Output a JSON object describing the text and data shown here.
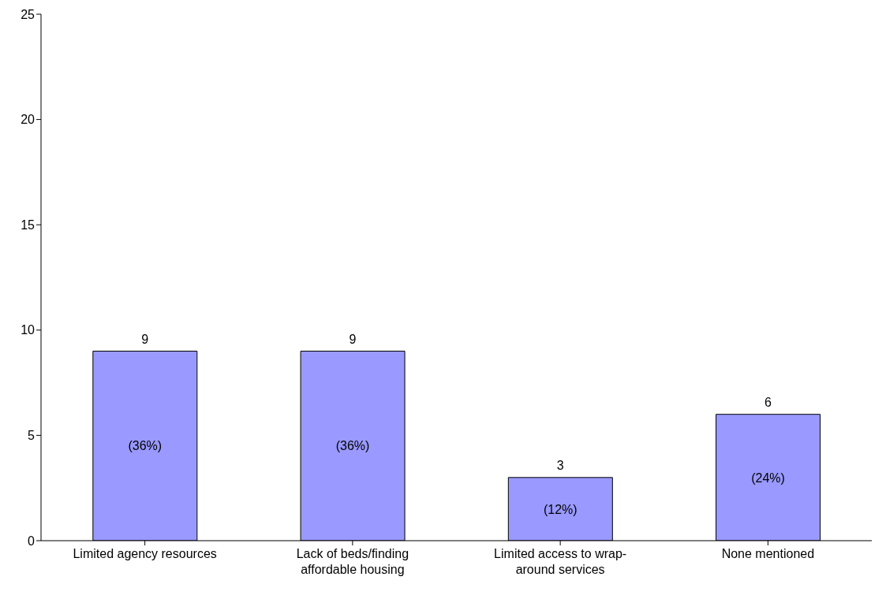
{
  "chart_data": {
    "type": "bar",
    "categories": [
      "Limited agency resources",
      "Lack of beds/finding affordable housing",
      "Limited access to wrap-around services",
      "None mentioned"
    ],
    "values": [
      9,
      9,
      3,
      6
    ],
    "color": "#9999ff",
    "ylim": [
      0,
      25
    ],
    "yticks": [
      0,
      5,
      10,
      15,
      20,
      25
    ],
    "grid": false,
    "data_labels": true,
    "annotations": [
      "(36%)",
      "(36%)",
      "(12%)",
      "(24%)"
    ]
  }
}
